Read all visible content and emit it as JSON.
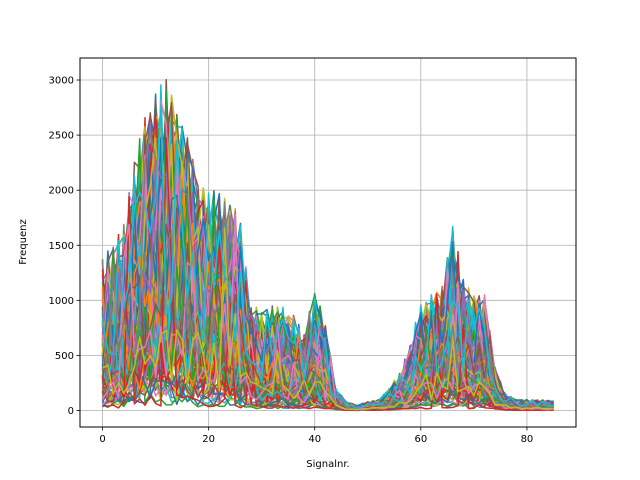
{
  "chart_data": {
    "type": "line",
    "title": "",
    "xlabel": "Signalnr.",
    "ylabel": "Frequenz",
    "xlim": [
      -4.25,
      89.25
    ],
    "ylim": [
      -150,
      3200
    ],
    "x_ticks": [
      0,
      20,
      40,
      60,
      80
    ],
    "y_ticks": [
      0,
      500,
      1000,
      1500,
      2000,
      2500,
      3000
    ],
    "grid": true,
    "legend": "none",
    "x_range": [
      0,
      85
    ],
    "n_series_visible": "many overlapping series (dense bundle)",
    "palette": [
      "#1f77b4",
      "#ff7f0e",
      "#2ca02c",
      "#d62728",
      "#9467bd",
      "#8c564b",
      "#e377c2",
      "#7f7f7f",
      "#bcbd22",
      "#17becf"
    ],
    "envelope": {
      "x": [
        0,
        2,
        4,
        6,
        8,
        10,
        12,
        14,
        16,
        18,
        20,
        22,
        24,
        26,
        28,
        30,
        32,
        34,
        36,
        38,
        40,
        42,
        44,
        46,
        48,
        50,
        52,
        54,
        56,
        58,
        60,
        62,
        64,
        66,
        68,
        70,
        72,
        74,
        76,
        78,
        80,
        82,
        85
      ],
      "y": [
        1400,
        1500,
        1700,
        2300,
        2700,
        2950,
        3050,
        2800,
        2600,
        2100,
        2000,
        2000,
        2000,
        1700,
        1000,
        900,
        950,
        950,
        900,
        700,
        1100,
        800,
        200,
        80,
        50,
        80,
        100,
        200,
        350,
        600,
        1000,
        1050,
        1150,
        1700,
        1200,
        1050,
        1050,
        400,
        150,
        100,
        100,
        100,
        90
      ]
    }
  }
}
